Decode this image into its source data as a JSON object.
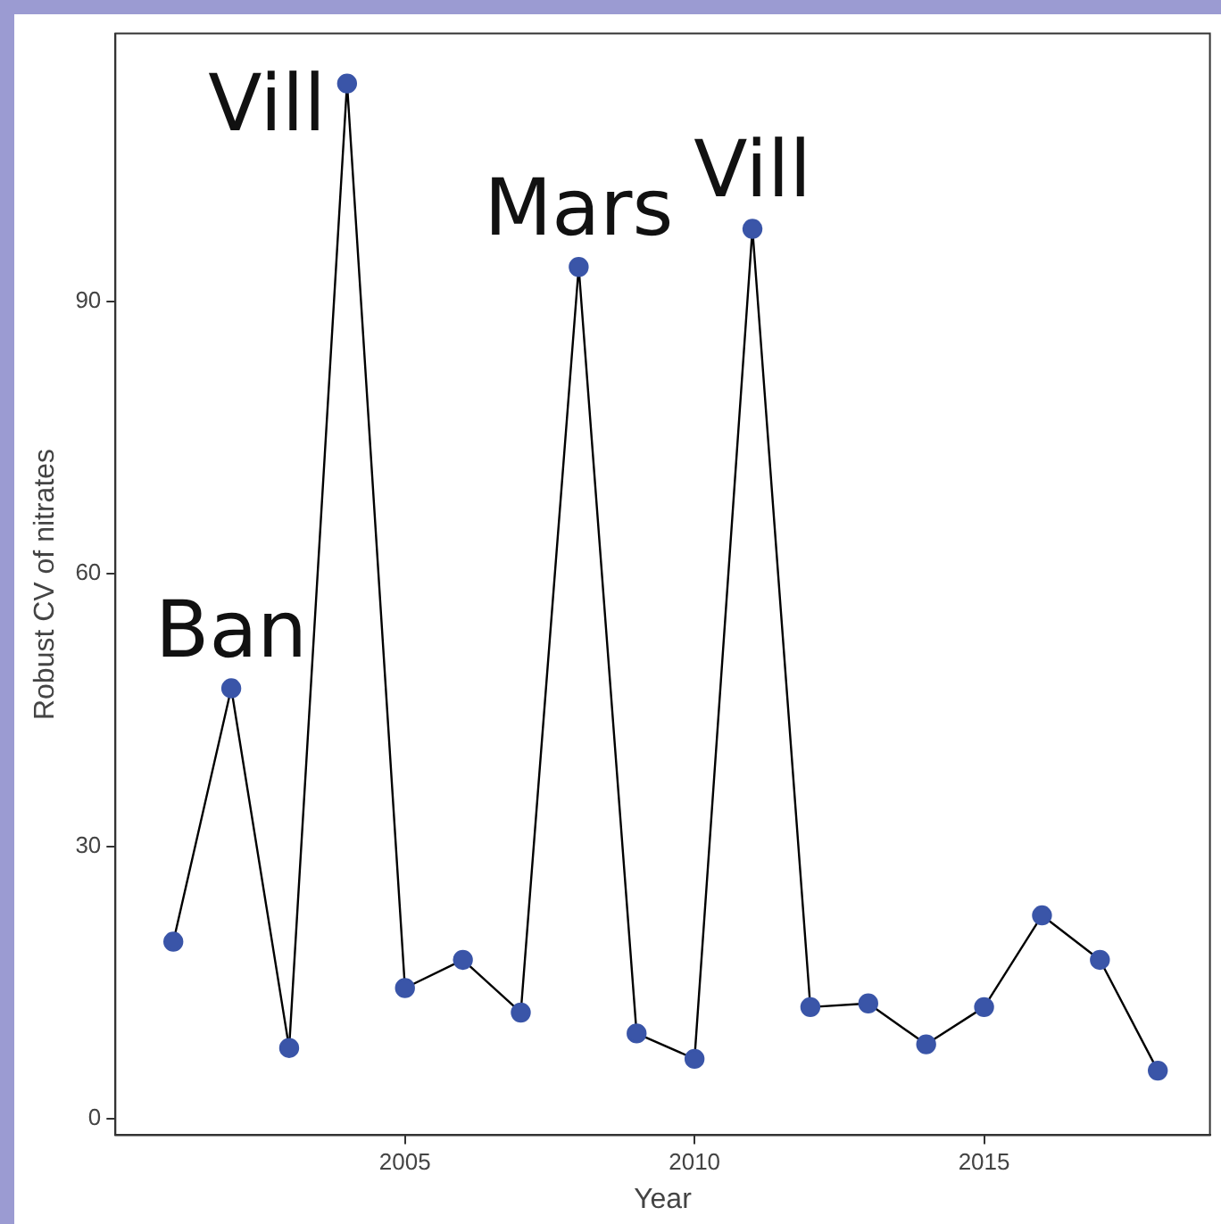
{
  "chart_data": {
    "type": "line",
    "xlabel": "Year",
    "ylabel": "Robust CV of nitrates",
    "x": [
      2001,
      2002,
      2003,
      2004,
      2005,
      2006,
      2007,
      2008,
      2009,
      2010,
      2011,
      2012,
      2013,
      2014,
      2015,
      2016,
      2017,
      2018
    ],
    "series": [
      {
        "color": "#3a55a8",
        "values": [
          19.5,
          47.4,
          7.8,
          114,
          14.4,
          17.5,
          11.7,
          93.8,
          9.4,
          6.6,
          98,
          12.3,
          12.7,
          8.2,
          12.3,
          22.4,
          17.5,
          5.3
        ]
      }
    ],
    "xlim": [
      2000,
      2018.9
    ],
    "xticks": [
      2005,
      2010,
      2015
    ],
    "ylim": [
      -1.8,
      119.5
    ],
    "yticks": [
      0,
      30,
      60,
      90
    ],
    "grid": false,
    "legend": false,
    "marker": "circle",
    "line_style": "solid",
    "annotations": [
      {
        "text": "Ban",
        "x": 2002,
        "y": 47.4
      },
      {
        "text": "Vill",
        "x": 2004,
        "y": 114
      },
      {
        "text": "Mars",
        "x": 2008,
        "y": 93.8
      },
      {
        "text": "Vill",
        "x": 2011,
        "y": 98
      }
    ]
  }
}
